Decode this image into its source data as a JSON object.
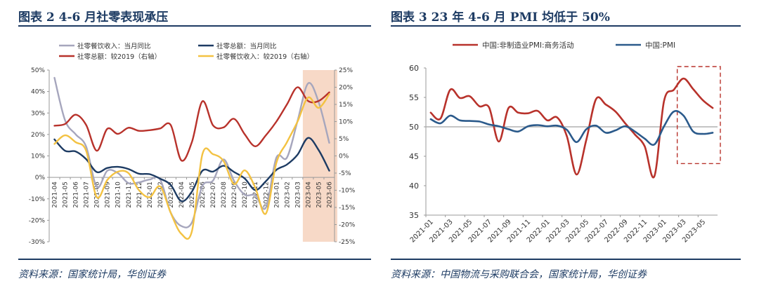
{
  "colors": {
    "navy": "#1d3b63",
    "red": "#b8322b",
    "blue": "#2b5a8b",
    "grey": "#a6a6bd",
    "yellow": "#f3c242",
    "shade": "#f7d9c7",
    "ref": "#b0b0b0"
  },
  "left": {
    "title": "图表 2   4-6 月社零表现承压",
    "source": "资料来源：国家统计局，华创证券"
  },
  "right": {
    "title": "图表 3   23 年 4-6 月 PMI 均低于 50%",
    "source": "资料来源：中国物流与采购联合会，国家统计局，华创证券"
  },
  "chart_data": [
    {
      "type": "line",
      "title": "4-6 月社零表现承压",
      "categories": [
        "2021-04",
        "2021-05",
        "2021-06",
        "2021-07",
        "2021-08",
        "2021-09",
        "2021-10",
        "2021-11",
        "2021-12",
        "2022-01",
        "2022-02",
        "2022-03",
        "2022-04",
        "2022-05",
        "2022-06",
        "2022-07",
        "2022-08",
        "2022-09",
        "2022-10",
        "2022-11",
        "2022-12",
        "2023-01",
        "2023-02",
        "2023-03",
        "2023-04",
        "2023-05",
        "2023-06"
      ],
      "y_left": {
        "lim": [
          -30,
          50
        ],
        "ticks": [
          -30,
          -20,
          -10,
          0,
          10,
          20,
          30,
          40,
          50
        ],
        "tick_labels": [
          "-30%",
          "-20%",
          "-10%",
          "0%",
          "10%",
          "20%",
          "30%",
          "40%",
          "50%"
        ]
      },
      "y_right": {
        "lim": [
          -25,
          25
        ],
        "ticks": [
          -25,
          -20,
          -15,
          -10,
          -5,
          0,
          5,
          10,
          15,
          20,
          25
        ],
        "tick_labels": [
          "-25%",
          "-20%",
          "-15%",
          "-10%",
          "-5%",
          "0%",
          "5%",
          "10%",
          "15%",
          "20%",
          "25%"
        ]
      },
      "highlight": {
        "from": "2023-04",
        "to": "2023-06"
      },
      "series": [
        {
          "name": "社零餐饮收入：当月同比",
          "axis": "left",
          "color": "#a6a6bd",
          "values": [
            46.4,
            26.6,
            20.1,
            14.3,
            -4.5,
            3.1,
            2.0,
            -2.7,
            -2.3,
            -1.0,
            -1.0,
            -16.4,
            -22.7,
            -21.1,
            -4.0,
            -1.5,
            8.4,
            -1.7,
            -8.1,
            -8.4,
            -14.1,
            9.2,
            9.2,
            26.3,
            43.8,
            35.1,
            16.1
          ]
        },
        {
          "name": "社零总额：当月同比",
          "axis": "left",
          "color": "#1d3b63",
          "values": [
            17.7,
            12.4,
            12.1,
            8.5,
            2.5,
            4.4,
            4.9,
            3.9,
            1.7,
            1.5,
            -0.6,
            -3.5,
            -11.1,
            -6.7,
            3.1,
            2.7,
            5.4,
            2.5,
            -0.5,
            -5.9,
            -1.8,
            3.5,
            6.0,
            10.6,
            18.4,
            12.7,
            3.1
          ]
        },
        {
          "name": "社零总额：较2019（右轴）",
          "axis": "right",
          "color": "#b8322b",
          "values": [
            8.8,
            9.3,
            12.0,
            9.0,
            1.5,
            7.9,
            6.4,
            8.2,
            7.3,
            7.5,
            8.0,
            9.0,
            -1.3,
            4.0,
            15.9,
            8.9,
            8.3,
            10.8,
            6.3,
            2.8,
            6.0,
            10.0,
            15.0,
            20.0,
            16.0,
            16.0,
            18.5
          ]
        },
        {
          "name": "社零餐饮收入：较2019（右轴）",
          "axis": "right",
          "color": "#f3c242",
          "values": [
            3.5,
            6.0,
            4.0,
            1.5,
            -12.0,
            -7.0,
            -4.6,
            -5.0,
            -10.0,
            -12.0,
            -8.9,
            -16.6,
            -22.7,
            -22.0,
            0.5,
            0.5,
            -1.5,
            -8.2,
            -4.2,
            -9.2,
            -16.8,
            -2.0,
            4.0,
            10.0,
            17.0,
            14.0,
            18.0
          ]
        }
      ]
    },
    {
      "type": "line",
      "title": "23 年 4-6 月 PMI 均低于 50%",
      "categories": [
        "2021-01",
        "2021-02",
        "2021-03",
        "2021-04",
        "2021-05",
        "2021-06",
        "2021-07",
        "2021-08",
        "2021-09",
        "2021-10",
        "2021-11",
        "2021-12",
        "2022-01",
        "2022-02",
        "2022-03",
        "2022-04",
        "2022-05",
        "2022-06",
        "2022-07",
        "2022-08",
        "2022-09",
        "2022-10",
        "2022-11",
        "2022-12",
        "2023-01",
        "2023-02",
        "2023-03",
        "2023-04",
        "2023-05",
        "2023-06"
      ],
      "x_tick_labels": [
        "2021-01",
        "2021-03",
        "2021-05",
        "2021-07",
        "2021-09",
        "2021-11",
        "2022-01",
        "2022-03",
        "2022-05",
        "2022-07",
        "2022-09",
        "2022-11",
        "2023-01",
        "2023-03",
        "2023-05"
      ],
      "ylim": [
        35,
        60
      ],
      "y_ticks": [
        35,
        40,
        45,
        50,
        55,
        60
      ],
      "reference_line": 50,
      "highlight": {
        "from": "2023-03",
        "to": "2023-06"
      },
      "series": [
        {
          "name": "中国:非制造业PMI:商务活动",
          "color": "#b8322b",
          "values": [
            52.4,
            51.4,
            56.3,
            54.9,
            55.2,
            53.5,
            53.3,
            47.5,
            53.2,
            52.4,
            52.3,
            52.7,
            51.1,
            51.6,
            48.4,
            41.9,
            47.8,
            54.7,
            53.8,
            52.6,
            50.6,
            48.7,
            46.7,
            41.6,
            54.4,
            56.3,
            58.2,
            56.4,
            54.5,
            53.2
          ]
        },
        {
          "name": "中国:PMI",
          "color": "#2b5a8b",
          "values": [
            51.3,
            50.6,
            51.9,
            51.1,
            51.0,
            50.9,
            50.4,
            50.1,
            49.6,
            49.2,
            50.1,
            50.3,
            50.1,
            50.2,
            49.5,
            47.4,
            49.6,
            50.2,
            49.0,
            49.4,
            50.1,
            49.2,
            48.0,
            47.0,
            50.1,
            52.6,
            51.9,
            49.2,
            48.8,
            49.0
          ]
        }
      ]
    }
  ]
}
